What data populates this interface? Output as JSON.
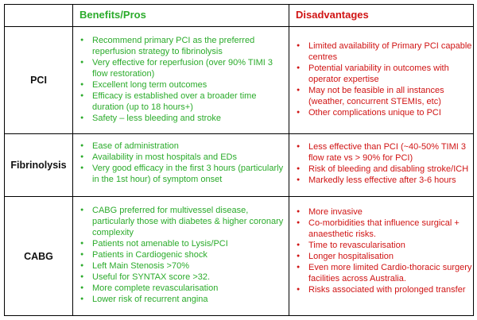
{
  "headers": {
    "corner": "",
    "benefits": "Benefits/Pros",
    "disadvantages": "Disadvantages"
  },
  "rows": [
    {
      "label": "PCI",
      "benefits": [
        "Recommend primary PCI as the preferred reperfusion strategy to fibrinolysis",
        "Very effective for reperfusion (over 90% TIMI 3 flow restoration)",
        "Excellent long term outcomes",
        "Efficacy is established over a broader time duration (up to 18 hours+)",
        "Safety – less bleeding and stroke"
      ],
      "disadvantages": [
        "Limited availability of Primary PCI capable centres",
        "Potential variability in outcomes with operator expertise",
        "May not be feasible in all instances (weather, concurrent STEMIs, etc)",
        "Other complications unique to PCI"
      ]
    },
    {
      "label": "Fibrinolysis",
      "benefits": [
        "Ease of administration",
        "Availability in most hospitals and EDs",
        "Very good efficacy in the first 3 hours (particularly in the 1st hour) of symptom onset"
      ],
      "disadvantages": [
        "Less effective than PCI (~40-50% TIMI 3 flow rate vs > 90% for PCI)",
        "Risk of bleeding and disabling stroke/ICH",
        "Markedly less effective after 3-6 hours"
      ]
    },
    {
      "label": "CABG",
      "benefits": [
        "CABG preferred for multivessel disease, particularly those with diabetes & higher coronary complexity",
        "Patients not amenable to Lysis/PCI",
        "Patients in Cardiogenic shock",
        "Left Main Stenosis >70%",
        "Useful for SYNTAX score >32.",
        "More complete revascularisation",
        "Lower risk of recurrent angina"
      ],
      "disadvantages": [
        "More invasive",
        "Co-morbidities that influence surgical + anaesthetic risks.",
        "Time to revascularisation",
        "Longer hospitalisation",
        "Even more limited Cardio-thoracic surgery facilities across Australia.",
        "Risks associated with prolonged transfer"
      ]
    }
  ],
  "colors": {
    "benefits_text": "#2bab2b",
    "disadvantages_text": "#d01414",
    "border": "#000000"
  }
}
